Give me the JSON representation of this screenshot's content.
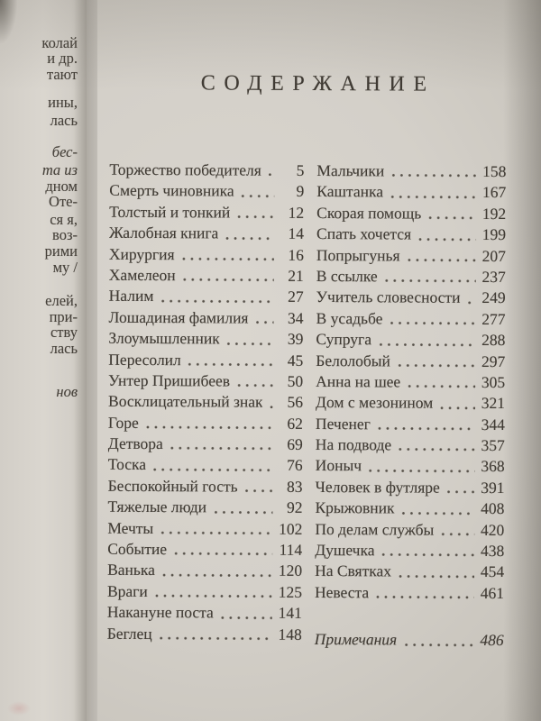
{
  "book": {
    "title": "СОДЕРЖАНИЕ",
    "toc_left": [
      {
        "title": "Торжество победителя",
        "page": "5"
      },
      {
        "title": "Смерть чиновника",
        "page": "9"
      },
      {
        "title": "Толстый и тонкий",
        "page": "12"
      },
      {
        "title": "Жалобная книга",
        "page": "14"
      },
      {
        "title": "Хирургия",
        "page": "16"
      },
      {
        "title": "Хамелеон",
        "page": "21"
      },
      {
        "title": "Налим",
        "page": "27"
      },
      {
        "title": "Лошадиная фамилия",
        "page": "34"
      },
      {
        "title": "Злоумышленник",
        "page": "39"
      },
      {
        "title": "Пересолил",
        "page": "45"
      },
      {
        "title": "Унтер Пришибеев",
        "page": "50"
      },
      {
        "title": "Восклицательный знак",
        "page": "56"
      },
      {
        "title": "Горе",
        "page": "62"
      },
      {
        "title": "Детвора",
        "page": "69"
      },
      {
        "title": "Тоска",
        "page": "76"
      },
      {
        "title": "Беспокойный гость",
        "page": "83"
      },
      {
        "title": "Тяжелые люди",
        "page": "92"
      },
      {
        "title": "Мечты",
        "page": "102"
      },
      {
        "title": "Событие",
        "page": "114"
      },
      {
        "title": "Ванька",
        "page": "120"
      },
      {
        "title": "Враги",
        "page": "125"
      },
      {
        "title": "Накануне поста",
        "page": "141"
      },
      {
        "title": "Беглец",
        "page": "148"
      }
    ],
    "toc_right": [
      {
        "title": "Мальчики",
        "page": "158"
      },
      {
        "title": "Каштанка",
        "page": "167"
      },
      {
        "title": "Скорая помощь",
        "page": "192"
      },
      {
        "title": "Спать хочется",
        "page": "199"
      },
      {
        "title": "Попрыгунья",
        "page": "207"
      },
      {
        "title": "В ссылке",
        "page": "237"
      },
      {
        "title": "Учитель словесности",
        "page": "249"
      },
      {
        "title": "В усадьбе",
        "page": "277"
      },
      {
        "title": "Супруга",
        "page": "288"
      },
      {
        "title": "Белолобый",
        "page": "297"
      },
      {
        "title": "Анна на шее",
        "page": "305"
      },
      {
        "title": "Дом с мезонином",
        "page": "321"
      },
      {
        "title": "Печенег",
        "page": "344"
      },
      {
        "title": "На подводе",
        "page": "357"
      },
      {
        "title": "Ионыч",
        "page": "368"
      },
      {
        "title": "Человек в футляре",
        "page": "391"
      },
      {
        "title": "Крыжовник",
        "page": "408"
      },
      {
        "title": "По делам службы",
        "page": "420"
      },
      {
        "title": "Душечка",
        "page": "438"
      },
      {
        "title": "На Святках",
        "page": "454"
      },
      {
        "title": "Невеста",
        "page": "461"
      }
    ],
    "notes": {
      "title": "Примечания",
      "page": "486"
    },
    "left_page_fragments": [
      {
        "text": "колай",
        "italic": false
      },
      {
        "text": "и др.",
        "italic": false
      },
      {
        "text": "тают",
        "italic": false
      },
      {
        "text": "ины,",
        "italic": false
      },
      {
        "text": "лась",
        "italic": false
      },
      {
        "text": "бес-",
        "italic": true
      },
      {
        "text": "та из",
        "italic": true
      },
      {
        "text": "дном",
        "italic": false
      },
      {
        "text": "Оте-",
        "italic": false
      },
      {
        "text": "ся я,",
        "italic": false
      },
      {
        "text": "воз-",
        "italic": false
      },
      {
        "text": "рими",
        "italic": false
      },
      {
        "text": "му /",
        "italic": false
      },
      {
        "text": "елей,",
        "italic": false
      },
      {
        "text": "при-",
        "italic": false
      },
      {
        "text": "ству",
        "italic": false
      },
      {
        "text": "лась",
        "italic": false
      },
      {
        "text": "нов",
        "italic": true
      }
    ],
    "colors": {
      "paper": "#d6d2cb",
      "ink": "#403b34",
      "shadow": "#b3afa6"
    }
  }
}
